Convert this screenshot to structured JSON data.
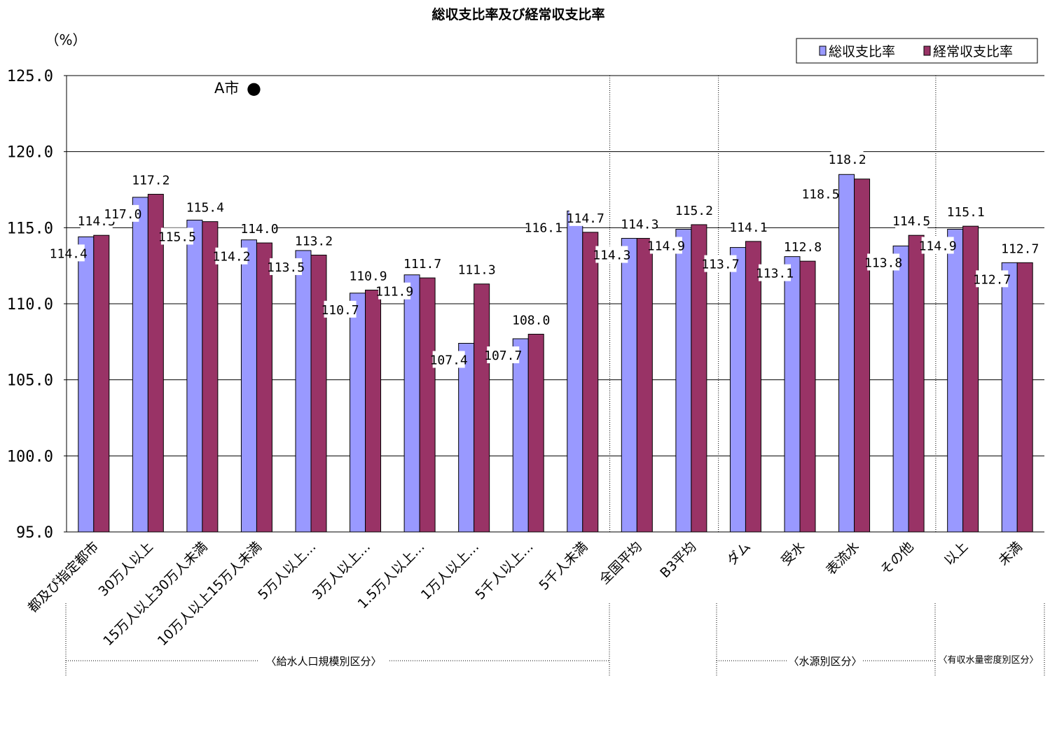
{
  "chart_data": {
    "type": "bar",
    "title": "総収支比率及び経常収支比率",
    "ylabel": "（%）",
    "ylim": [
      95.0,
      125.0
    ],
    "yticks": [
      "95.0",
      "100.0",
      "105.0",
      "110.0",
      "115.0",
      "120.0",
      "125.0"
    ],
    "legend_position": "top-right",
    "grid": true,
    "categories": [
      "都及び指定都市",
      "30万人以上",
      "15万人以上30万人未満",
      "10万人以上15万人未満",
      "5万人以上…",
      "3万人以上…",
      "1.5万人以上…",
      "1万人以上…",
      "5千人以上…",
      "5千人未満",
      "全国平均",
      "B3平均",
      "ダム",
      "受水",
      "表流水",
      "その他",
      "以上",
      "未満"
    ],
    "series": [
      {
        "name": "総収支比率",
        "color": "#9999ff",
        "values": [
          114.4,
          117.0,
          115.5,
          114.2,
          113.5,
          110.7,
          111.9,
          107.4,
          107.7,
          116.1,
          114.3,
          114.9,
          113.7,
          113.1,
          118.5,
          113.8,
          114.9,
          112.7
        ],
        "labels": [
          "114.4",
          "117.0",
          "115.5",
          "114.2",
          "113.5",
          "110.7",
          "111.9",
          "107.4",
          "107.7",
          "116.1",
          "114.3",
          "114.9",
          "113.7",
          "113.1",
          "118.5",
          "113.8",
          "114.9",
          "112.7"
        ]
      },
      {
        "name": "経常収支比率",
        "color": "#993366",
        "values": [
          114.5,
          117.2,
          115.4,
          114.0,
          113.2,
          110.9,
          111.7,
          111.3,
          108.0,
          114.7,
          114.3,
          115.2,
          114.1,
          112.8,
          118.2,
          114.5,
          115.1,
          112.7
        ],
        "labels": [
          "114.5",
          "117.2",
          "115.4",
          "114.0",
          "113.2",
          "110.9",
          "111.7",
          "111.3",
          "108.0",
          "114.7",
          "114.3",
          "115.2",
          "114.1",
          "112.8",
          "118.2",
          "114.5",
          "115.1",
          "112.7"
        ]
      }
    ],
    "annotations": [
      {
        "text": "A市",
        "marker": "●",
        "y": 126.0
      }
    ],
    "groups": [
      {
        "label": "〈給水人口規模別区分〉",
        "from": 0,
        "to": 9
      },
      {
        "label": "〈水源別区分〉",
        "from": 12,
        "to": 15
      },
      {
        "label": "〈有収水量密度別区分〉",
        "from": 16,
        "to": 17
      }
    ]
  }
}
